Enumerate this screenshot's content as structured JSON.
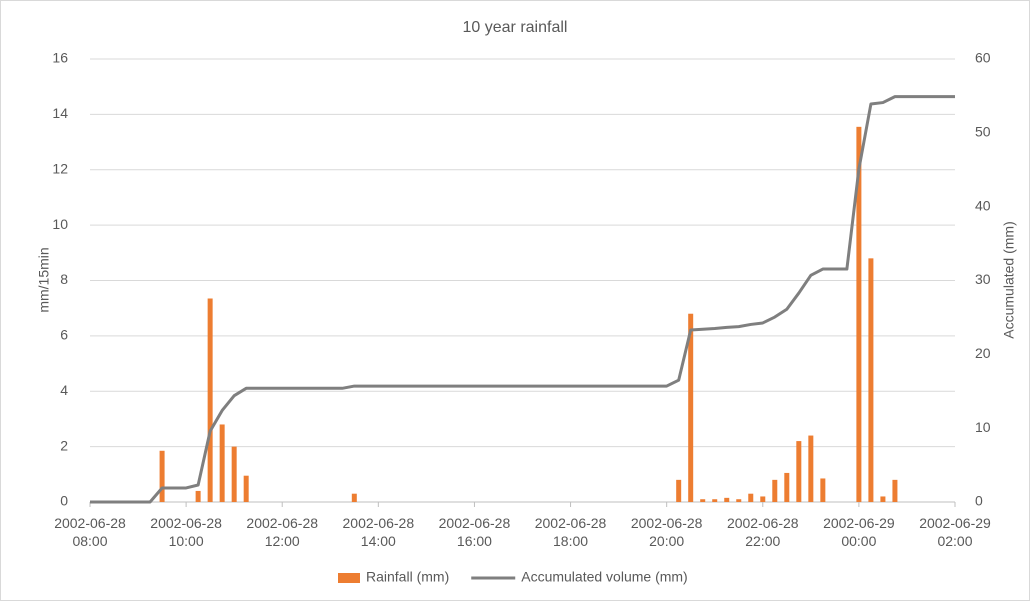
{
  "chart_data": {
    "type": "bar-line",
    "title": "10 year rainfall",
    "y_label": "mm/15min",
    "y2_label": "Accumulated (mm)",
    "xlim": [
      "2002-06-28 08:00",
      "2002-06-29 02:00"
    ],
    "xticks": [
      "2002-06-28 08:00",
      "2002-06-28 10:00",
      "2002-06-28 12:00",
      "2002-06-28 14:00",
      "2002-06-28 16:00",
      "2002-06-28 18:00",
      "2002-06-28 20:00",
      "2002-06-28 22:00",
      "2002-06-29 00:00",
      "2002-06-29 02:00"
    ],
    "ylim": [
      0,
      16
    ],
    "yticks": [
      0,
      2,
      4,
      6,
      8,
      10,
      12,
      14,
      16
    ],
    "y2lim": [
      0,
      60
    ],
    "y2ticks": [
      0,
      10,
      20,
      30,
      40,
      50,
      60
    ],
    "grid": true,
    "legend": "bottom",
    "series": [
      {
        "name": "Rainfall (mm)",
        "type": "bar",
        "color": "#ed7d31",
        "x": [
          "2002-06-28 09:30",
          "2002-06-28 10:15",
          "2002-06-28 10:30",
          "2002-06-28 10:45",
          "2002-06-28 11:00",
          "2002-06-28 11:15",
          "2002-06-28 13:30",
          "2002-06-28 20:15",
          "2002-06-28 20:30",
          "2002-06-28 20:45",
          "2002-06-28 21:00",
          "2002-06-28 21:15",
          "2002-06-28 21:30",
          "2002-06-28 21:45",
          "2002-06-28 22:00",
          "2002-06-28 22:15",
          "2002-06-28 22:30",
          "2002-06-28 22:45",
          "2002-06-28 23:00",
          "2002-06-28 23:15",
          "2002-06-29 00:00",
          "2002-06-29 00:15",
          "2002-06-29 00:30",
          "2002-06-29 00:45"
        ],
        "values": [
          1.85,
          0.4,
          7.35,
          2.8,
          2.0,
          0.95,
          0.3,
          0.8,
          6.8,
          0.1,
          0.1,
          0.15,
          0.1,
          0.3,
          0.2,
          0.8,
          1.05,
          2.2,
          2.4,
          0.85,
          13.55,
          8.8,
          0.2,
          0.8
        ]
      },
      {
        "name": "Accumulated volume (mm)",
        "type": "line",
        "axis": "y2",
        "color": "#7f7f7f",
        "x": [
          "2002-06-28 08:00",
          "2002-06-28 09:15",
          "2002-06-28 09:30",
          "2002-06-28 10:00",
          "2002-06-28 10:15",
          "2002-06-28 10:30",
          "2002-06-28 10:45",
          "2002-06-28 11:00",
          "2002-06-28 11:15",
          "2002-06-28 13:15",
          "2002-06-28 13:30",
          "2002-06-28 20:00",
          "2002-06-28 20:15",
          "2002-06-28 20:30",
          "2002-06-28 20:45",
          "2002-06-28 21:00",
          "2002-06-28 21:15",
          "2002-06-28 21:30",
          "2002-06-28 21:45",
          "2002-06-28 22:00",
          "2002-06-28 22:15",
          "2002-06-28 22:30",
          "2002-06-28 22:45",
          "2002-06-28 23:00",
          "2002-06-28 23:15",
          "2002-06-28 23:45",
          "2002-06-29 00:00",
          "2002-06-29 00:15",
          "2002-06-29 00:30",
          "2002-06-29 00:45",
          "2002-06-29 02:00"
        ],
        "values": [
          0,
          0,
          1.9,
          1.9,
          2.3,
          9.6,
          12.4,
          14.4,
          15.4,
          15.4,
          15.7,
          15.7,
          16.5,
          23.3,
          23.4,
          23.5,
          23.65,
          23.75,
          24.05,
          24.25,
          25.05,
          26.1,
          28.3,
          30.7,
          31.55,
          31.55,
          45.1,
          53.9,
          54.1,
          54.9,
          54.9
        ]
      }
    ]
  }
}
